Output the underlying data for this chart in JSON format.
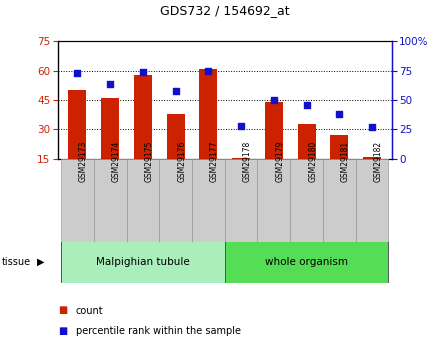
{
  "title": "GDS732 / 154692_at",
  "samples": [
    "GSM29173",
    "GSM29174",
    "GSM29175",
    "GSM29176",
    "GSM29177",
    "GSM29178",
    "GSM29179",
    "GSM29180",
    "GSM29181",
    "GSM29182"
  ],
  "counts": [
    50,
    46,
    58,
    38,
    61,
    15.5,
    44,
    33,
    27,
    16
  ],
  "percentile_ranks": [
    73,
    64,
    74,
    58,
    75,
    28,
    50,
    46,
    38,
    27
  ],
  "bar_bottom": 15,
  "left_ylim": [
    15,
    75
  ],
  "left_yticks": [
    15,
    30,
    45,
    60,
    75
  ],
  "right_ylim": [
    0,
    100
  ],
  "right_yticks": [
    0,
    25,
    50,
    75,
    100
  ],
  "bar_color": "#cc2200",
  "dot_color": "#1111cc",
  "tissue_color_malpighian": "#aaeebb",
  "tissue_color_whole": "#55dd55",
  "tick_label_bg": "#cccccc",
  "legend_count_label": "count",
  "legend_pct_label": "percentile rank within the sample",
  "group1_label": "Malpighian tubule",
  "group2_label": "whole organism",
  "group1_indices": [
    0,
    1,
    2,
    3,
    4
  ],
  "group2_indices": [
    5,
    6,
    7,
    8,
    9
  ]
}
